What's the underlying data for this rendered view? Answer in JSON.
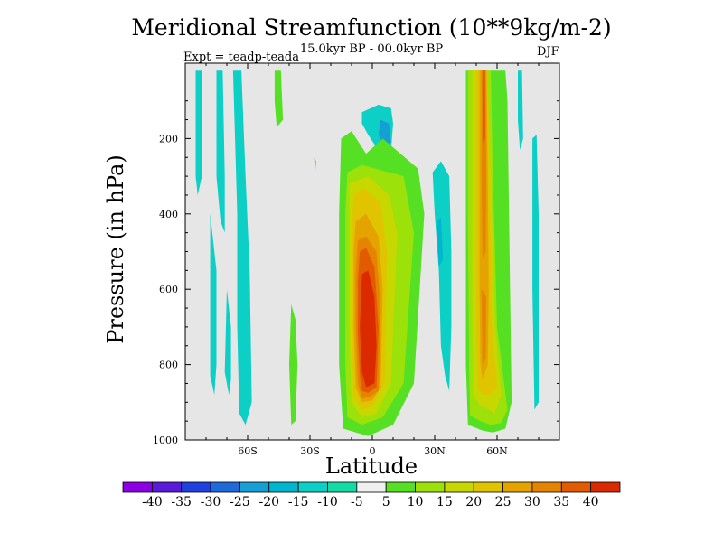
{
  "chart_data": {
    "type": "heatmap",
    "title": "Meridional Streamfunction (10**9kg/m-2)",
    "subtitle": "15.0kyr BP - 00.0kyr BP",
    "experiment": "Expt = teadp-teada",
    "season": "DJF",
    "xlabel": "Latitude",
    "ylabel": "Pressure (in hPa)",
    "xlim": [
      -90,
      90
    ],
    "ylim": [
      0,
      1000
    ],
    "x_ticks": [
      {
        "value": -60,
        "label": "60S"
      },
      {
        "value": -30,
        "label": "30S"
      },
      {
        "value": 0,
        "label": "0"
      },
      {
        "value": 30,
        "label": "30N"
      },
      {
        "value": 60,
        "label": "60N"
      }
    ],
    "y_ticks": [
      {
        "value": 200,
        "label": "200"
      },
      {
        "value": 400,
        "label": "400"
      },
      {
        "value": 600,
        "label": "600"
      },
      {
        "value": 800,
        "label": "800"
      },
      {
        "value": 1000,
        "label": "1000"
      }
    ],
    "colorbar": {
      "labels": [
        "-40",
        "-35",
        "-30",
        "-25",
        "-20",
        "-15",
        "-10",
        "-5",
        "5",
        "10",
        "15",
        "20",
        "25",
        "30",
        "35",
        "40"
      ],
      "colors": [
        "#8d00e6",
        "#5b19d9",
        "#2140e0",
        "#1e6cd9",
        "#159fd5",
        "#00b6cf",
        "#0ccfc6",
        "#14dba6",
        "#f0f0f0",
        "#55e023",
        "#9de10a",
        "#c7d700",
        "#e0c400",
        "#e5a300",
        "#e58400",
        "#e35b00",
        "#db2a00"
      ]
    },
    "regions": [
      {
        "name": "sh-polar-band",
        "level": -10,
        "points": [
          [
            -85,
            20
          ],
          [
            -82,
            20
          ],
          [
            -82,
            300
          ],
          [
            -84,
            350
          ],
          [
            -85,
            300
          ]
        ]
      },
      {
        "name": "sh-band-a",
        "level": -10,
        "points": [
          [
            -75,
            20
          ],
          [
            -72,
            20
          ],
          [
            -71,
            300
          ],
          [
            -71,
            450
          ],
          [
            -73,
            420
          ],
          [
            -75,
            300
          ]
        ]
      },
      {
        "name": "sh-band-b",
        "level": -10,
        "points": [
          [
            -67,
            20
          ],
          [
            -63,
            20
          ],
          [
            -61,
            300
          ],
          [
            -59,
            550
          ],
          [
            -58,
            900
          ],
          [
            -61,
            960
          ],
          [
            -64,
            930
          ],
          [
            -65,
            700
          ],
          [
            -65,
            400
          ]
        ]
      },
      {
        "name": "sh-band-c",
        "level": -10,
        "points": [
          [
            -78,
            400
          ],
          [
            -75,
            550
          ],
          [
            -75,
            800
          ],
          [
            -76,
            880
          ],
          [
            -78,
            830
          ]
        ]
      },
      {
        "name": "sh-band-d",
        "level": -10,
        "points": [
          [
            -70,
            600
          ],
          [
            -68,
            700
          ],
          [
            -68,
            840
          ],
          [
            -69,
            880
          ],
          [
            -71,
            820
          ]
        ]
      },
      {
        "name": "sh-positive-band",
        "level": 5,
        "points": [
          [
            -47,
            20
          ],
          [
            -44,
            20
          ],
          [
            -43,
            150
          ],
          [
            -46,
            170
          ],
          [
            -47,
            100
          ]
        ]
      },
      {
        "name": "sh-positive-mid",
        "level": 5,
        "points": [
          [
            -39,
            640
          ],
          [
            -37,
            680
          ],
          [
            -36,
            800
          ],
          [
            -37,
            950
          ],
          [
            -39,
            960
          ],
          [
            -40,
            800
          ]
        ]
      },
      {
        "name": "sh-positive-small",
        "level": 5,
        "points": [
          [
            -28,
            250
          ],
          [
            -27,
            260
          ],
          [
            -27.5,
            290
          ]
        ]
      },
      {
        "name": "tropical-upper-neg",
        "level": -10,
        "points": [
          [
            -5,
            130
          ],
          [
            3,
            110
          ],
          [
            9,
            120
          ],
          [
            10,
            160
          ],
          [
            9,
            230
          ],
          [
            4,
            240
          ],
          [
            -2,
            190
          ],
          [
            -5,
            160
          ]
        ]
      },
      {
        "name": "tropical-upper-core",
        "level": -20,
        "points": [
          [
            4,
            150
          ],
          [
            8,
            160
          ],
          [
            9,
            210
          ],
          [
            5,
            220
          ],
          [
            3,
            190
          ]
        ]
      },
      {
        "name": "tropical-cell-5",
        "level": 5,
        "points": [
          [
            -15,
            200
          ],
          [
            -10,
            180
          ],
          [
            -3,
            240
          ],
          [
            5,
            200
          ],
          [
            22,
            280
          ],
          [
            25,
            400
          ],
          [
            20,
            850
          ],
          [
            10,
            960
          ],
          [
            -2,
            990
          ],
          [
            -14,
            970
          ],
          [
            -16,
            800
          ],
          [
            -16,
            400
          ]
        ]
      },
      {
        "name": "tropical-cell-10",
        "level": 10,
        "points": [
          [
            -12,
            290
          ],
          [
            -5,
            270
          ],
          [
            15,
            300
          ],
          [
            20,
            450
          ],
          [
            15,
            850
          ],
          [
            5,
            940
          ],
          [
            -5,
            960
          ],
          [
            -12,
            940
          ],
          [
            -13,
            800
          ],
          [
            -13,
            400
          ]
        ]
      },
      {
        "name": "tropical-cell-15",
        "level": 15,
        "points": [
          [
            -11,
            320
          ],
          [
            -2,
            300
          ],
          [
            8,
            350
          ],
          [
            12,
            450
          ],
          [
            9,
            850
          ],
          [
            2,
            930
          ],
          [
            -5,
            940
          ],
          [
            -10,
            900
          ],
          [
            -11,
            700
          ],
          [
            -11,
            420
          ]
        ]
      },
      {
        "name": "tropical-cell-20",
        "level": 20,
        "points": [
          [
            -9,
            350
          ],
          [
            -4,
            330
          ],
          [
            4,
            370
          ],
          [
            7,
            500
          ],
          [
            6,
            850
          ],
          [
            0,
            910
          ],
          [
            -5,
            920
          ],
          [
            -9,
            880
          ],
          [
            -10,
            700
          ],
          [
            -10,
            450
          ]
        ]
      },
      {
        "name": "tropical-cell-25",
        "level": 25,
        "points": [
          [
            -8,
            420
          ],
          [
            -3,
            400
          ],
          [
            3,
            460
          ],
          [
            5,
            600
          ],
          [
            4,
            860
          ],
          [
            0,
            895
          ],
          [
            -5,
            900
          ],
          [
            -8,
            860
          ],
          [
            -9,
            700
          ],
          [
            -9,
            500
          ]
        ]
      },
      {
        "name": "tropical-cell-30",
        "level": 30,
        "points": [
          [
            -7,
            470
          ],
          [
            -3,
            460
          ],
          [
            2,
            500
          ],
          [
            4,
            650
          ],
          [
            3,
            870
          ],
          [
            -1,
            885
          ],
          [
            -5,
            890
          ],
          [
            -7,
            850
          ],
          [
            -8,
            700
          ],
          [
            -8,
            560
          ]
        ]
      },
      {
        "name": "tropical-cell-35",
        "level": 35,
        "points": [
          [
            -6,
            500
          ],
          [
            -3,
            490
          ],
          [
            1,
            540
          ],
          [
            3,
            700
          ],
          [
            2,
            860
          ],
          [
            -2,
            875
          ],
          [
            -5,
            870
          ],
          [
            -6,
            830
          ],
          [
            -7,
            720
          ],
          [
            -7,
            580
          ]
        ]
      },
      {
        "name": "tropical-cell-40",
        "level": 40,
        "points": [
          [
            -5,
            560
          ],
          [
            -2,
            550
          ],
          [
            1,
            620
          ],
          [
            2,
            750
          ],
          [
            1,
            850
          ],
          [
            -3,
            860
          ],
          [
            -5,
            820
          ],
          [
            -6,
            700
          ]
        ]
      },
      {
        "name": "nh-subtropical-neg",
        "level": -10,
        "points": [
          [
            29,
            290
          ],
          [
            33,
            260
          ],
          [
            37,
            300
          ],
          [
            38,
            500
          ],
          [
            38,
            700
          ],
          [
            37,
            870
          ],
          [
            35,
            830
          ],
          [
            33,
            750
          ],
          [
            32,
            550
          ],
          [
            30,
            400
          ]
        ]
      },
      {
        "name": "nh-subtropical-neg-core",
        "level": -15,
        "points": [
          [
            31,
            420
          ],
          [
            33,
            410
          ],
          [
            34,
            520
          ],
          [
            32,
            540
          ]
        ]
      },
      {
        "name": "nh-band-5",
        "level": 5,
        "points": [
          [
            45,
            20
          ],
          [
            52,
            20
          ],
          [
            64,
            20
          ],
          [
            65,
            100
          ],
          [
            66,
            500
          ],
          [
            67,
            900
          ],
          [
            64,
            970
          ],
          [
            58,
            980
          ],
          [
            53,
            975
          ],
          [
            46,
            960
          ],
          [
            45,
            800
          ],
          [
            45,
            400
          ]
        ]
      },
      {
        "name": "nh-band-10",
        "level": 10,
        "points": [
          [
            46,
            20
          ],
          [
            52,
            20
          ],
          [
            57,
            20
          ],
          [
            58,
            300
          ],
          [
            60,
            700
          ],
          [
            65,
            920
          ],
          [
            62,
            955
          ],
          [
            57,
            960
          ],
          [
            52,
            950
          ],
          [
            47,
            935
          ],
          [
            46.5,
            800
          ],
          [
            46,
            400
          ]
        ]
      },
      {
        "name": "nh-band-15",
        "level": 15,
        "points": [
          [
            48,
            20
          ],
          [
            55,
            20
          ],
          [
            57,
            300
          ],
          [
            59,
            700
          ],
          [
            62,
            880
          ],
          [
            59,
            930
          ],
          [
            56,
            920
          ],
          [
            52,
            910
          ],
          [
            48.5,
            880
          ],
          [
            48,
            600
          ]
        ]
      },
      {
        "name": "nh-band-20",
        "level": 20,
        "points": [
          [
            50,
            20
          ],
          [
            55.5,
            20
          ],
          [
            56.5,
            300
          ],
          [
            57.5,
            700
          ],
          [
            60,
            860
          ],
          [
            57,
            880
          ],
          [
            53,
            880
          ],
          [
            50.5,
            860
          ],
          [
            50,
            600
          ]
        ]
      },
      {
        "name": "nh-band-25",
        "level": 25,
        "points": [
          [
            51.5,
            20
          ],
          [
            55,
            20
          ],
          [
            55.5,
            300
          ],
          [
            56,
            600
          ],
          [
            55.5,
            800
          ],
          [
            53,
            840
          ],
          [
            52,
            800
          ],
          [
            51.5,
            600
          ]
        ]
      },
      {
        "name": "nh-band-30",
        "level": 30,
        "points": [
          [
            52.5,
            20
          ],
          [
            54.5,
            20
          ],
          [
            54.8,
            300
          ],
          [
            54.5,
            500
          ],
          [
            53,
            520
          ],
          [
            52.5,
            300
          ]
        ]
      },
      {
        "name": "nh-band-30b",
        "level": 30,
        "points": [
          [
            52.5,
            600
          ],
          [
            54.8,
            620
          ],
          [
            54.5,
            780
          ],
          [
            53,
            800
          ]
        ]
      },
      {
        "name": "nh-band-35",
        "level": 35,
        "points": [
          [
            53,
            20
          ],
          [
            54.2,
            20
          ],
          [
            54.3,
            200
          ],
          [
            53.1,
            210
          ]
        ]
      },
      {
        "name": "nh-polar-band",
        "level": -10,
        "points": [
          [
            70,
            20
          ],
          [
            72,
            20
          ],
          [
            72.5,
            200
          ],
          [
            71,
            230
          ],
          [
            70,
            150
          ]
        ]
      },
      {
        "name": "nh-polar-band-b",
        "level": -10,
        "points": [
          [
            77,
            200
          ],
          [
            79,
            190
          ],
          [
            80,
            400
          ],
          [
            80,
            900
          ],
          [
            78,
            920
          ],
          [
            77,
            600
          ]
        ]
      }
    ]
  }
}
